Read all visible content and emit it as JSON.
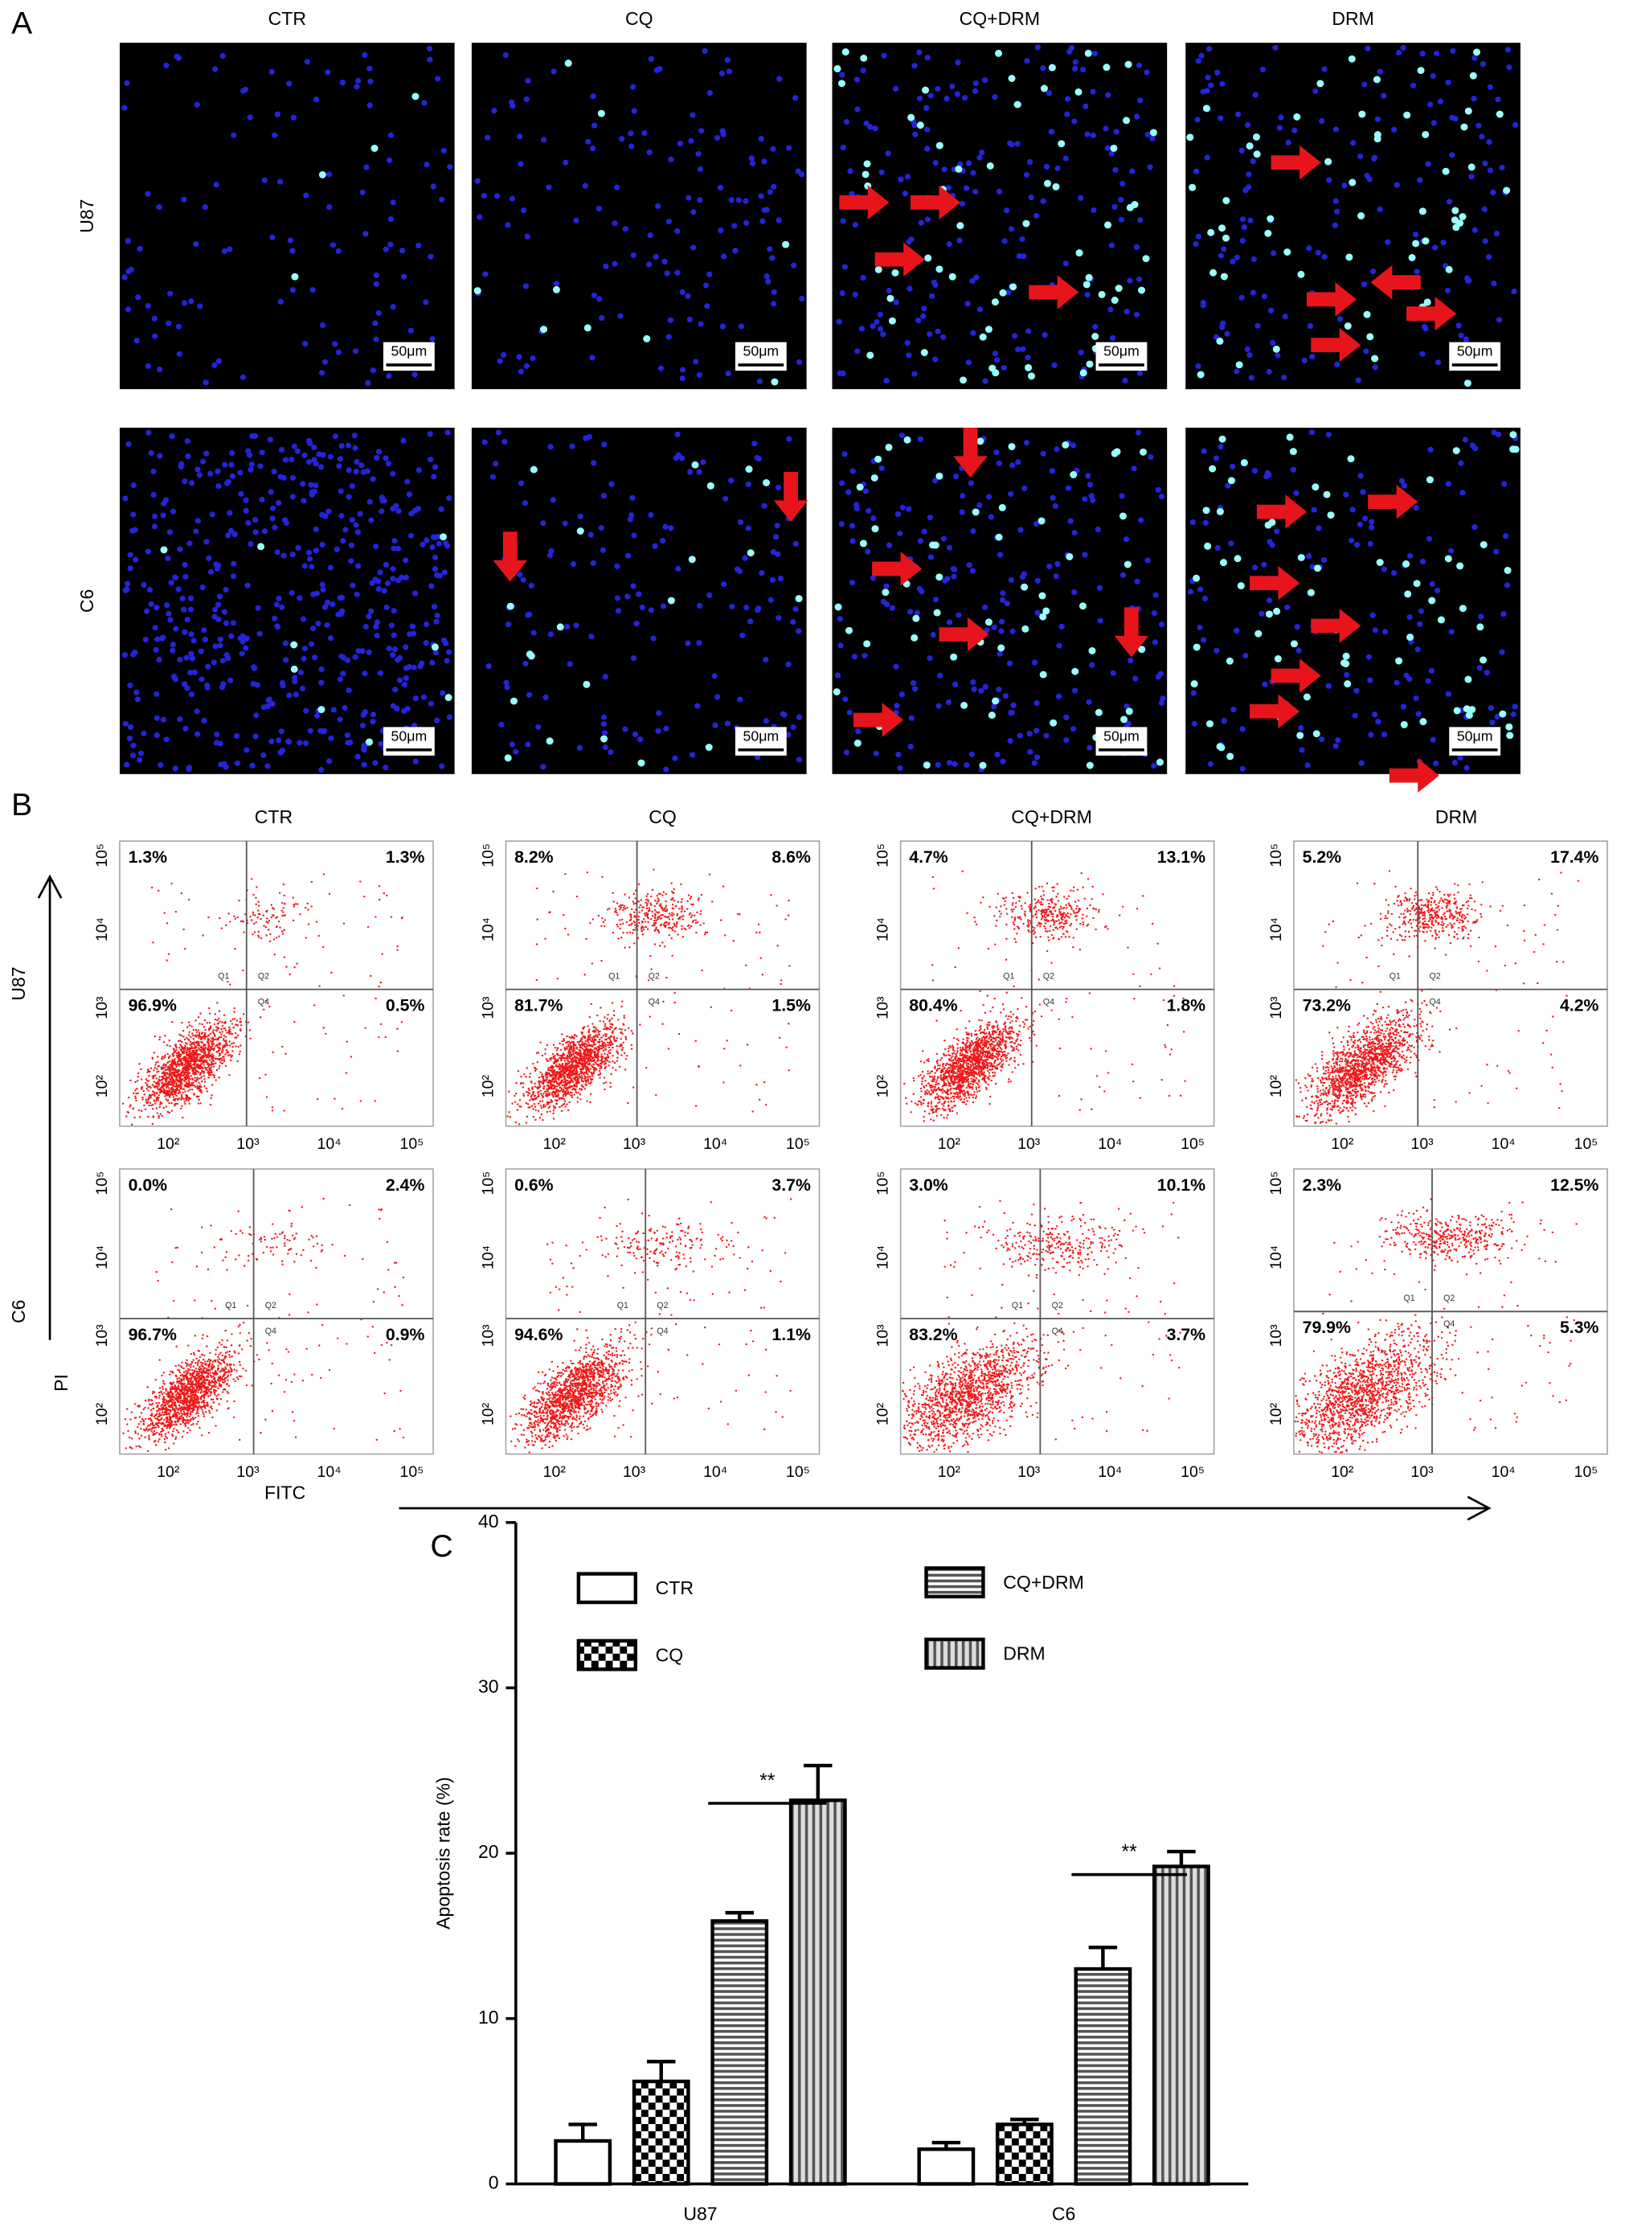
{
  "panel_a": {
    "label": "A",
    "columns": [
      "CTR",
      "CQ",
      "CQ+DRM",
      "DRM"
    ],
    "rows": [
      "U87",
      "C6"
    ],
    "scale_bar": "50μm"
  },
  "panel_b": {
    "label": "B",
    "columns": [
      "CTR",
      "CQ",
      "CQ+DRM",
      "DRM"
    ],
    "rows": [
      "U87",
      "C6"
    ],
    "x_label": "FITC",
    "y_label": "PI",
    "ticks": [
      "10²",
      "10³",
      "10⁴",
      "10⁵"
    ],
    "quadrant_labels": [
      "Q1",
      "Q2",
      "Q3",
      "Q4"
    ],
    "quadrants": [
      [
        [
          "1.3%",
          "1.3%",
          "96.9%",
          "0.5%"
        ],
        [
          "8.2%",
          "8.6%",
          "81.7%",
          "1.5%"
        ],
        [
          "4.7%",
          "13.1%",
          "80.4%",
          "1.8%"
        ],
        [
          "5.2%",
          "17.4%",
          "73.2%",
          "4.2%"
        ]
      ],
      [
        [
          "0.0%",
          "2.4%",
          "96.7%",
          "0.9%"
        ],
        [
          "0.6%",
          "3.7%",
          "94.6%",
          "1.1%"
        ],
        [
          "3.0%",
          "10.1%",
          "83.2%",
          "3.7%"
        ],
        [
          "2.3%",
          "12.5%",
          "79.9%",
          "5.3%"
        ]
      ]
    ]
  },
  "chart_data": {
    "type": "bar",
    "label": "C",
    "y_label": "Apoptosis rate (%)",
    "categories": [
      "U87",
      "C6"
    ],
    "series": [
      {
        "name": "CTR",
        "color": "#000000",
        "pattern": "none",
        "values": [
          2.6,
          2.1
        ],
        "errors": [
          1.0,
          0.4
        ]
      },
      {
        "name": "CQ",
        "color": "#000000",
        "pattern": "checker",
        "values": [
          6.2,
          3.6
        ],
        "errors": [
          1.2,
          0.3
        ]
      },
      {
        "name": "CQ+DRM",
        "color": "#000000",
        "pattern": "horizontal",
        "values": [
          15.9,
          13.0
        ],
        "errors": [
          0.5,
          1.3
        ]
      },
      {
        "name": "DRM",
        "color": "#000000",
        "pattern": "vertical",
        "values": [
          23.2,
          19.2
        ],
        "errors": [
          2.1,
          0.9
        ]
      }
    ],
    "ylim": [
      0,
      40
    ],
    "yticks": [
      0,
      10,
      20,
      30,
      40
    ],
    "annotations": [
      "**",
      "**"
    ]
  }
}
